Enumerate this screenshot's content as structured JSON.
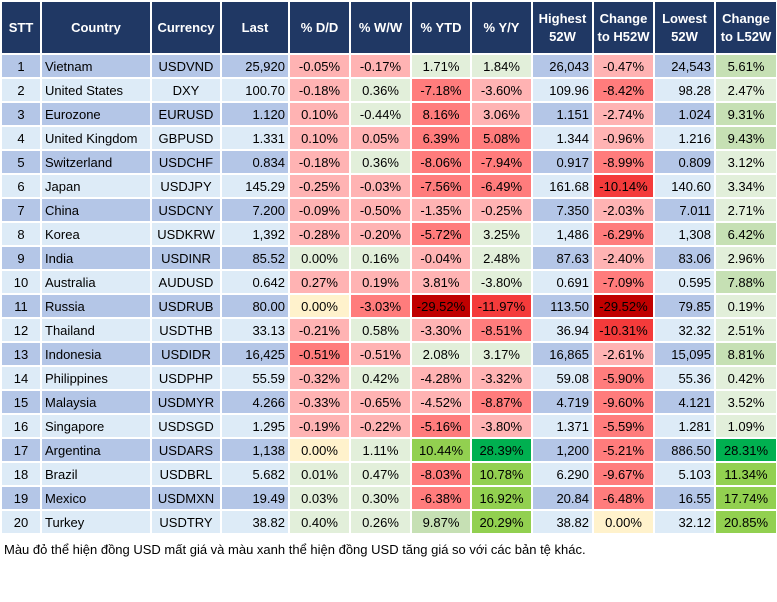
{
  "headers": [
    "STT",
    "Country",
    "Currency",
    "Last",
    "% D/D",
    "% W/W",
    "% YTD",
    "% Y/Y",
    "Highest 52W",
    "Change to H52W",
    "Lowest 52W",
    "Change to L52W"
  ],
  "colors": {
    "header": "#203864",
    "row_odd": "#b4c6e7",
    "row_even": "#ddebf7",
    "r1": "#ffb3b3",
    "r2": "#ff7c7c",
    "r3": "#f43b3b",
    "r4": "#c00000",
    "g1": "#e2efda",
    "g2": "#c6e0b4",
    "g3": "#92d050",
    "g4": "#00b050",
    "y": "#fff2cc"
  },
  "rows": [
    {
      "stt": "1",
      "country": "Vietnam",
      "currency": "USDVND",
      "last": "25,920",
      "dd": "-0.05%",
      "ww": "-0.17%",
      "ytd": "1.71%",
      "yy": "1.84%",
      "high": "26,043",
      "chg_h": "-0.47%",
      "low": "24,543",
      "chg_l": "5.61%",
      "shade": [
        "r1",
        "r1",
        "g1",
        "g1",
        "r1",
        "g2"
      ]
    },
    {
      "stt": "2",
      "country": "United States",
      "currency": "DXY",
      "last": "100.70",
      "dd": "-0.18%",
      "ww": "0.36%",
      "ytd": "-7.18%",
      "yy": "-3.60%",
      "high": "109.96",
      "chg_h": "-8.42%",
      "low": "98.28",
      "chg_l": "2.47%",
      "shade": [
        "r1",
        "g1",
        "r2",
        "r1",
        "r2",
        "g1"
      ]
    },
    {
      "stt": "3",
      "country": "Eurozone",
      "currency": "EURUSD",
      "last": "1.120",
      "dd": "0.10%",
      "ww": "-0.44%",
      "ytd": "8.16%",
      "yy": "3.06%",
      "high": "1.151",
      "chg_h": "-2.74%",
      "low": "1.024",
      "chg_l": "9.31%",
      "shade": [
        "r1",
        "g1",
        "r2",
        "r1",
        "r1",
        "g2"
      ]
    },
    {
      "stt": "4",
      "country": "United Kingdom",
      "currency": "GBPUSD",
      "last": "1.331",
      "dd": "0.10%",
      "ww": "0.05%",
      "ytd": "6.39%",
      "yy": "5.08%",
      "high": "1.344",
      "chg_h": "-0.96%",
      "low": "1.216",
      "chg_l": "9.43%",
      "shade": [
        "r1",
        "r1",
        "r2",
        "r2",
        "r1",
        "g2"
      ]
    },
    {
      "stt": "5",
      "country": "Switzerland",
      "currency": "USDCHF",
      "last": "0.834",
      "dd": "-0.18%",
      "ww": "0.36%",
      "ytd": "-8.06%",
      "yy": "-7.94%",
      "high": "0.917",
      "chg_h": "-8.99%",
      "low": "0.809",
      "chg_l": "3.12%",
      "shade": [
        "r1",
        "g1",
        "r2",
        "r2",
        "r2",
        "g1"
      ]
    },
    {
      "stt": "6",
      "country": "Japan",
      "currency": "USDJPY",
      "last": "145.29",
      "dd": "-0.25%",
      "ww": "-0.03%",
      "ytd": "-7.56%",
      "yy": "-6.49%",
      "high": "161.68",
      "chg_h": "-10.14%",
      "low": "140.60",
      "chg_l": "3.34%",
      "shade": [
        "r1",
        "r1",
        "r2",
        "r2",
        "r3",
        "g1"
      ]
    },
    {
      "stt": "7",
      "country": "China",
      "currency": "USDCNY",
      "last": "7.200",
      "dd": "-0.09%",
      "ww": "-0.50%",
      "ytd": "-1.35%",
      "yy": "-0.25%",
      "high": "7.350",
      "chg_h": "-2.03%",
      "low": "7.011",
      "chg_l": "2.71%",
      "shade": [
        "r1",
        "r1",
        "r1",
        "r1",
        "r1",
        "g1"
      ]
    },
    {
      "stt": "8",
      "country": "Korea",
      "currency": "USDKRW",
      "last": "1,392",
      "dd": "-0.28%",
      "ww": "-0.20%",
      "ytd": "-5.72%",
      "yy": "3.25%",
      "high": "1,486",
      "chg_h": "-6.29%",
      "low": "1,308",
      "chg_l": "6.42%",
      "shade": [
        "r1",
        "r1",
        "r2",
        "g1",
        "r2",
        "g2"
      ]
    },
    {
      "stt": "9",
      "country": "India",
      "currency": "USDINR",
      "last": "85.52",
      "dd": "0.00%",
      "ww": "0.16%",
      "ytd": "-0.04%",
      "yy": "2.48%",
      "high": "87.63",
      "chg_h": "-2.40%",
      "low": "83.06",
      "chg_l": "2.96%",
      "shade": [
        "g1",
        "g1",
        "r1",
        "g1",
        "r1",
        "g1"
      ]
    },
    {
      "stt": "10",
      "country": "Australia",
      "currency": "AUDUSD",
      "last": "0.642",
      "dd": "0.27%",
      "ww": "0.19%",
      "ytd": "3.81%",
      "yy": "-3.80%",
      "high": "0.691",
      "chg_h": "-7.09%",
      "low": "0.595",
      "chg_l": "7.88%",
      "shade": [
        "r1",
        "r1",
        "r1",
        "g1",
        "r2",
        "g2"
      ]
    },
    {
      "stt": "11",
      "country": "Russia",
      "currency": "USDRUB",
      "last": "80.00",
      "dd": "0.00%",
      "ww": "-3.03%",
      "ytd": "-29.52%",
      "yy": "-11.97%",
      "high": "113.50",
      "chg_h": "-29.52%",
      "low": "79.85",
      "chg_l": "0.19%",
      "shade": [
        "y",
        "r2",
        "r4",
        "r3",
        "r4",
        "g1"
      ]
    },
    {
      "stt": "12",
      "country": "Thailand",
      "currency": "USDTHB",
      "last": "33.13",
      "dd": "-0.21%",
      "ww": "0.58%",
      "ytd": "-3.30%",
      "yy": "-8.51%",
      "high": "36.94",
      "chg_h": "-10.31%",
      "low": "32.32",
      "chg_l": "2.51%",
      "shade": [
        "r1",
        "g1",
        "r1",
        "r2",
        "r3",
        "g1"
      ]
    },
    {
      "stt": "13",
      "country": "Indonesia",
      "currency": "USDIDR",
      "last": "16,425",
      "dd": "-0.51%",
      "ww": "-0.51%",
      "ytd": "2.08%",
      "yy": "3.17%",
      "high": "16,865",
      "chg_h": "-2.61%",
      "low": "15,095",
      "chg_l": "8.81%",
      "shade": [
        "r2",
        "r1",
        "g1",
        "g1",
        "r1",
        "g2"
      ]
    },
    {
      "stt": "14",
      "country": "Philippines",
      "currency": "USDPHP",
      "last": "55.59",
      "dd": "-0.32%",
      "ww": "0.42%",
      "ytd": "-4.28%",
      "yy": "-3.32%",
      "high": "59.08",
      "chg_h": "-5.90%",
      "low": "55.36",
      "chg_l": "0.42%",
      "shade": [
        "r1",
        "g1",
        "r1",
        "r1",
        "r2",
        "g1"
      ]
    },
    {
      "stt": "15",
      "country": "Malaysia",
      "currency": "USDMYR",
      "last": "4.266",
      "dd": "-0.33%",
      "ww": "-0.65%",
      "ytd": "-4.52%",
      "yy": "-8.87%",
      "high": "4.719",
      "chg_h": "-9.60%",
      "low": "4.121",
      "chg_l": "3.52%",
      "shade": [
        "r1",
        "r1",
        "r1",
        "r2",
        "r2",
        "g1"
      ]
    },
    {
      "stt": "16",
      "country": "Singapore",
      "currency": "USDSGD",
      "last": "1.295",
      "dd": "-0.19%",
      "ww": "-0.22%",
      "ytd": "-5.16%",
      "yy": "-3.80%",
      "high": "1.371",
      "chg_h": "-5.59%",
      "low": "1.281",
      "chg_l": "1.09%",
      "shade": [
        "r1",
        "r1",
        "r2",
        "r1",
        "r2",
        "g1"
      ]
    },
    {
      "stt": "17",
      "country": "Argentina",
      "currency": "USDARS",
      "last": "1,138",
      "dd": "0.00%",
      "ww": "1.11%",
      "ytd": "10.44%",
      "yy": "28.39%",
      "high": "1,200",
      "chg_h": "-5.21%",
      "low": "886.50",
      "chg_l": "28.31%",
      "shade": [
        "y",
        "g1",
        "g3",
        "g4",
        "r2",
        "g4"
      ]
    },
    {
      "stt": "18",
      "country": "Brazil",
      "currency": "USDBRL",
      "last": "5.682",
      "dd": "0.01%",
      "ww": "0.47%",
      "ytd": "-8.03%",
      "yy": "10.78%",
      "high": "6.290",
      "chg_h": "-9.67%",
      "low": "5.103",
      "chg_l": "11.34%",
      "shade": [
        "g1",
        "g1",
        "r2",
        "g3",
        "r2",
        "g3"
      ]
    },
    {
      "stt": "19",
      "country": "Mexico",
      "currency": "USDMXN",
      "last": "19.49",
      "dd": "0.03%",
      "ww": "0.30%",
      "ytd": "-6.38%",
      "yy": "16.92%",
      "high": "20.84",
      "chg_h": "-6.48%",
      "low": "16.55",
      "chg_l": "17.74%",
      "shade": [
        "g1",
        "g1",
        "r2",
        "g3",
        "r2",
        "g3"
      ]
    },
    {
      "stt": "20",
      "country": "Turkey",
      "currency": "USDTRY",
      "last": "38.82",
      "dd": "0.40%",
      "ww": "0.26%",
      "ytd": "9.87%",
      "yy": "20.29%",
      "high": "38.82",
      "chg_h": "0.00%",
      "low": "32.12",
      "chg_l": "20.85%",
      "shade": [
        "g1",
        "g1",
        "g2",
        "g3",
        "y",
        "g3"
      ]
    }
  ],
  "footer": "Màu đỏ thể hiện đồng USD mất giá và màu xanh thể hiện đồng USD tăng giá so với các bản tệ khác."
}
